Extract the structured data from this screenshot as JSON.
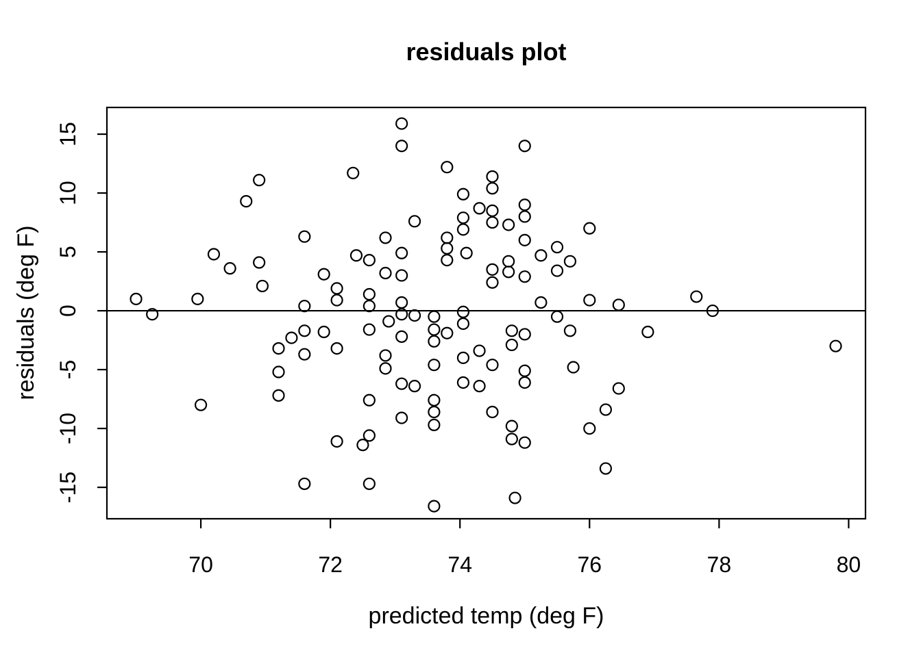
{
  "chart_data": {
    "type": "scatter",
    "title": "residuals plot",
    "xlabel": "predicted temp (deg F)",
    "ylabel": "residuals (deg F)",
    "xlim": [
      68.55,
      80.26
    ],
    "ylim": [
      -17.67,
      17.27
    ],
    "x_ticks": [
      "70",
      "72",
      "74",
      "76",
      "78",
      "80"
    ],
    "x_tick_values": [
      70,
      72,
      74,
      76,
      78,
      80
    ],
    "y_ticks": [
      "-15",
      "-10",
      "-5",
      "0",
      "5",
      "10",
      "15"
    ],
    "y_tick_values": [
      -15,
      -10,
      -5,
      0,
      5,
      10,
      15
    ],
    "grid": false,
    "legend": null,
    "marker": "open-circle",
    "reference_line_y": 0,
    "colors": {
      "points": "#000000",
      "axis": "#000000",
      "background": "#ffffff"
    },
    "points": [
      [
        69.0,
        1.0
      ],
      [
        69.25,
        -0.3
      ],
      [
        69.95,
        1.0
      ],
      [
        70.0,
        -8.0
      ],
      [
        70.2,
        4.8
      ],
      [
        70.45,
        3.6
      ],
      [
        70.7,
        9.3
      ],
      [
        70.9,
        11.1
      ],
      [
        70.9,
        4.1
      ],
      [
        70.95,
        2.1
      ],
      [
        71.2,
        -3.2
      ],
      [
        71.2,
        -5.2
      ],
      [
        71.2,
        -7.2
      ],
      [
        71.4,
        -2.3
      ],
      [
        71.6,
        6.3
      ],
      [
        71.6,
        0.4
      ],
      [
        71.6,
        -1.7
      ],
      [
        71.6,
        -3.7
      ],
      [
        71.6,
        -14.7
      ],
      [
        71.9,
        3.1
      ],
      [
        71.9,
        -1.8
      ],
      [
        72.1,
        1.9
      ],
      [
        72.1,
        0.9
      ],
      [
        72.1,
        -3.2
      ],
      [
        72.1,
        -11.1
      ],
      [
        72.35,
        11.7
      ],
      [
        72.4,
        4.7
      ],
      [
        72.5,
        -11.4
      ],
      [
        72.6,
        4.3
      ],
      [
        72.6,
        1.4
      ],
      [
        72.6,
        0.4
      ],
      [
        72.6,
        -1.6
      ],
      [
        72.6,
        -7.6
      ],
      [
        72.6,
        -10.6
      ],
      [
        72.6,
        -14.7
      ],
      [
        72.85,
        6.2
      ],
      [
        72.85,
        3.2
      ],
      [
        72.9,
        -0.9
      ],
      [
        72.85,
        -3.8
      ],
      [
        72.85,
        -4.9
      ],
      [
        73.1,
        15.9
      ],
      [
        73.1,
        14.0
      ],
      [
        73.1,
        4.9
      ],
      [
        73.1,
        3.0
      ],
      [
        73.1,
        0.7
      ],
      [
        73.1,
        -0.3
      ],
      [
        73.1,
        -2.2
      ],
      [
        73.1,
        -6.2
      ],
      [
        73.1,
        -9.1
      ],
      [
        73.3,
        7.6
      ],
      [
        73.3,
        -0.4
      ],
      [
        73.3,
        -6.4
      ],
      [
        73.6,
        -0.5
      ],
      [
        73.6,
        -1.6
      ],
      [
        73.6,
        -2.6
      ],
      [
        73.6,
        -4.6
      ],
      [
        73.6,
        -7.6
      ],
      [
        73.6,
        -8.6
      ],
      [
        73.6,
        -9.7
      ],
      [
        73.6,
        -16.6
      ],
      [
        73.8,
        12.2
      ],
      [
        73.8,
        6.2
      ],
      [
        73.8,
        5.3
      ],
      [
        73.8,
        4.3
      ],
      [
        73.8,
        -1.9
      ],
      [
        74.05,
        9.9
      ],
      [
        74.05,
        7.9
      ],
      [
        74.05,
        6.9
      ],
      [
        74.1,
        4.9
      ],
      [
        74.05,
        -0.1
      ],
      [
        74.05,
        -1.1
      ],
      [
        74.05,
        -4.0
      ],
      [
        74.05,
        -6.1
      ],
      [
        74.3,
        8.7
      ],
      [
        74.3,
        -3.4
      ],
      [
        74.3,
        -6.4
      ],
      [
        74.5,
        11.4
      ],
      [
        74.5,
        10.4
      ],
      [
        74.5,
        8.5
      ],
      [
        74.5,
        7.5
      ],
      [
        74.5,
        3.5
      ],
      [
        74.5,
        2.4
      ],
      [
        74.5,
        -4.6
      ],
      [
        74.5,
        -8.6
      ],
      [
        74.75,
        7.3
      ],
      [
        74.75,
        4.2
      ],
      [
        74.75,
        3.3
      ],
      [
        74.8,
        -1.7
      ],
      [
        74.8,
        -2.9
      ],
      [
        74.8,
        -9.8
      ],
      [
        74.8,
        -10.9
      ],
      [
        74.85,
        -15.9
      ],
      [
        75.0,
        14.0
      ],
      [
        75.0,
        9.0
      ],
      [
        75.0,
        8.0
      ],
      [
        75.0,
        6.0
      ],
      [
        75.0,
        2.9
      ],
      [
        75.0,
        -2.0
      ],
      [
        75.0,
        -5.1
      ],
      [
        75.0,
        -6.1
      ],
      [
        75.0,
        -11.2
      ],
      [
        75.25,
        4.7
      ],
      [
        75.25,
        0.7
      ],
      [
        75.5,
        5.4
      ],
      [
        75.5,
        3.4
      ],
      [
        75.5,
        -0.5
      ],
      [
        75.7,
        4.2
      ],
      [
        75.7,
        -1.7
      ],
      [
        75.75,
        -4.8
      ],
      [
        76.0,
        7.0
      ],
      [
        76.0,
        0.9
      ],
      [
        76.0,
        -10.0
      ],
      [
        76.25,
        -8.4
      ],
      [
        76.25,
        -13.4
      ],
      [
        76.45,
        0.5
      ],
      [
        76.45,
        -6.6
      ],
      [
        76.9,
        -1.8
      ],
      [
        77.65,
        1.2
      ],
      [
        77.9,
        0.0
      ],
      [
        79.8,
        -3.0
      ]
    ]
  }
}
